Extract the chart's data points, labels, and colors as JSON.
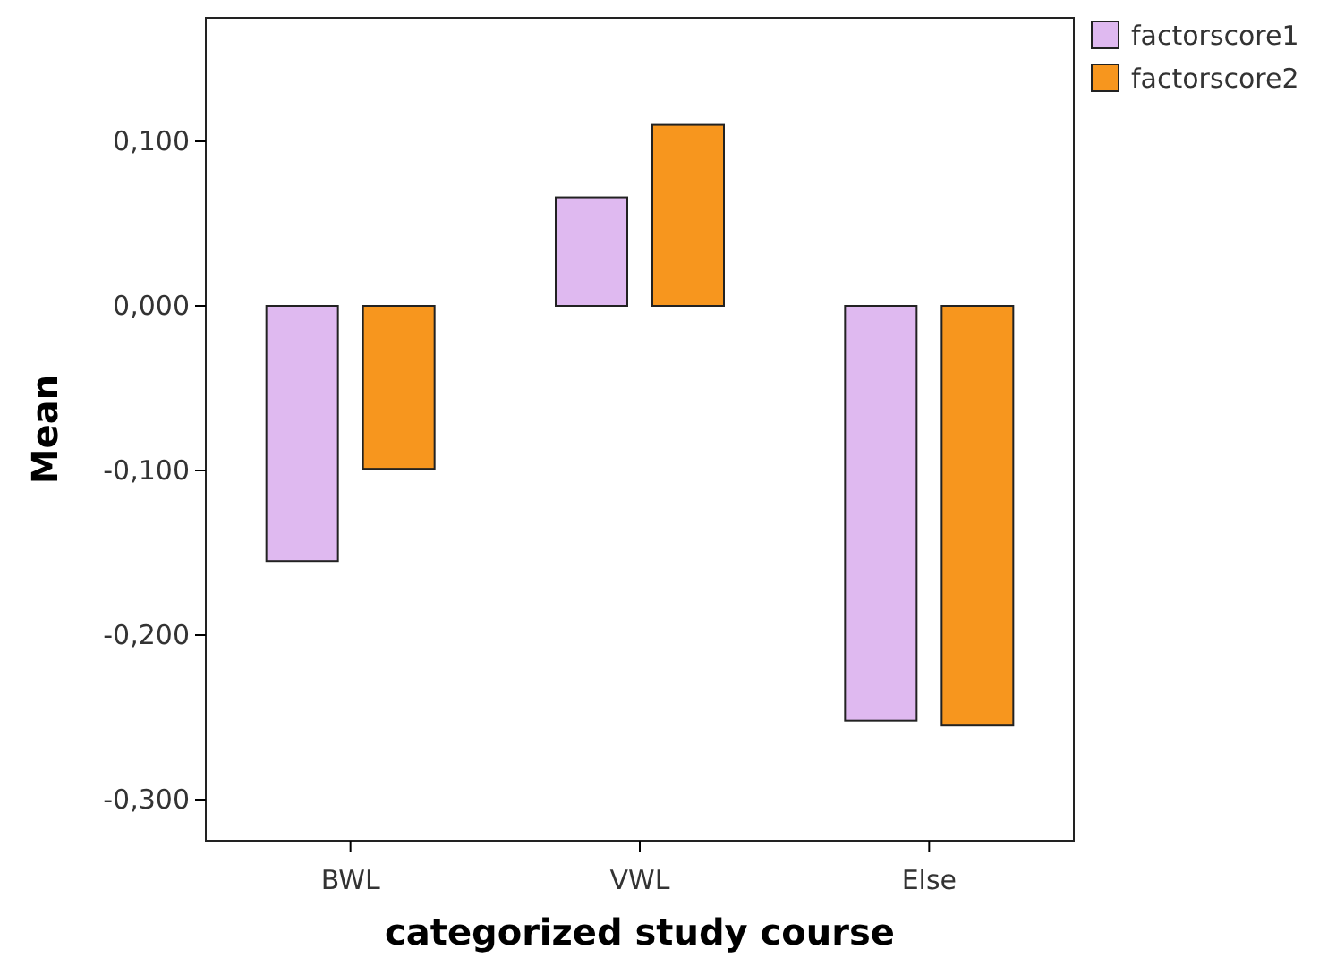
{
  "chart_data": {
    "type": "bar",
    "xlabel": "categorized study course",
    "ylabel": "Mean",
    "categories": [
      "BWL",
      "VWL",
      "Else"
    ],
    "series": [
      {
        "name": "factorscore1",
        "color": "#dfb9f0",
        "values": [
          -0.155,
          0.066,
          -0.252
        ]
      },
      {
        "name": "factorscore2",
        "color": "#f7961e",
        "values": [
          -0.099,
          0.11,
          -0.255
        ]
      }
    ],
    "ylim": [
      -0.325,
      0.175
    ],
    "yticks": [
      {
        "value": -0.3,
        "label": "-0,300"
      },
      {
        "value": -0.2,
        "label": "-0,200"
      },
      {
        "value": -0.1,
        "label": "-0,100"
      },
      {
        "value": 0,
        "label": "0,000"
      },
      {
        "value": 0.1,
        "label": "0,100"
      }
    ],
    "grid": false,
    "legend": "top right"
  }
}
